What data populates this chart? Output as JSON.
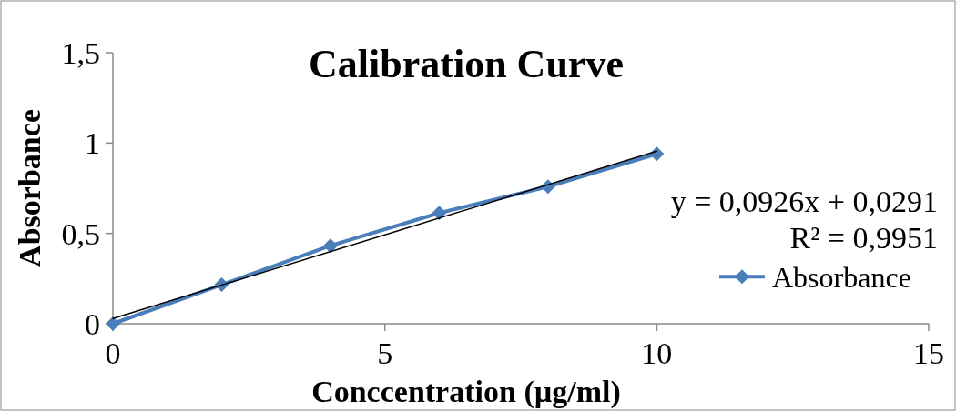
{
  "chart_data": {
    "type": "line",
    "title": "Calibration Curve",
    "xlabel": "Conccentration (µg/ml)",
    "ylabel": "Absorbance",
    "x": [
      0,
      2,
      4,
      6,
      8,
      10
    ],
    "series": [
      {
        "name": "Absorbance",
        "color": "#4a7ebb",
        "values": [
          0,
          0.216,
          0.432,
          0.613,
          0.759,
          0.94
        ],
        "marker": "diamond"
      },
      {
        "type": "line",
        "color": "#000000",
        "x": [
          0,
          10
        ],
        "values": [
          0.0291,
          0.9551
        ],
        "marker": "none"
      }
    ],
    "annotations": [
      "y = 0,0926x + 0,0291",
      "R² = 0,9951"
    ],
    "xlim": [
      0,
      15
    ],
    "xticks": [
      0,
      5,
      10,
      15
    ],
    "ylim": [
      0,
      1.5
    ],
    "yticks": [
      0,
      {
        "value": 0.5,
        "label": "0,5"
      },
      1,
      {
        "value": 1.5,
        "label": "1,5"
      }
    ],
    "legend": "right",
    "grid": false
  }
}
